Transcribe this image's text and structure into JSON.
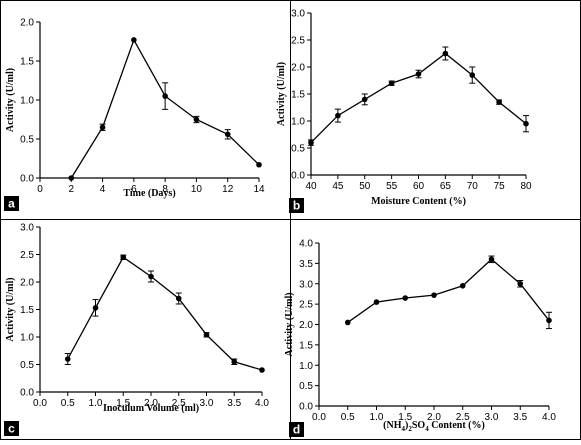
{
  "chart_data": [
    {
      "type": "line",
      "panel_label": "a",
      "xlabel": "Time (Days)",
      "ylabel": "Activity (U/ml)",
      "xlim": [
        0,
        14
      ],
      "ylim": [
        0,
        2.0
      ],
      "xticks": [
        "0",
        "2",
        "4",
        "6",
        "8",
        "10",
        "12",
        "14"
      ],
      "yticks": [
        "0.0",
        "0.5",
        "1.0",
        "1.5",
        "2.0"
      ],
      "grid": false,
      "series": [
        {
          "x": [
            2,
            4,
            6,
            8,
            10,
            12,
            14
          ],
          "y": [
            0.0,
            0.65,
            1.77,
            1.05,
            0.75,
            0.56,
            0.17
          ],
          "err": [
            0.0,
            0.04,
            0.0,
            0.17,
            0.04,
            0.06,
            0.0
          ]
        }
      ]
    },
    {
      "type": "line",
      "panel_label": "b",
      "xlabel": "Moisture Content (%)",
      "ylabel": "Activity (U/ml)",
      "xlim": [
        40,
        80
      ],
      "ylim": [
        0,
        3.0
      ],
      "xticks": [
        "40",
        "45",
        "50",
        "55",
        "60",
        "65",
        "70",
        "75",
        "80"
      ],
      "yticks": [
        "0.0",
        "0.5",
        "1.0",
        "1.5",
        "2.0",
        "2.5",
        "3.0"
      ],
      "grid": false,
      "series": [
        {
          "x": [
            40,
            45,
            50,
            55,
            60,
            65,
            70,
            75,
            80
          ],
          "y": [
            0.6,
            1.1,
            1.4,
            1.7,
            1.87,
            2.25,
            1.85,
            1.35,
            0.95
          ],
          "err": [
            0.05,
            0.12,
            0.1,
            0.04,
            0.07,
            0.12,
            0.15,
            0.04,
            0.15
          ]
        }
      ]
    },
    {
      "type": "line",
      "panel_label": "c",
      "xlabel": "Inoculum Volume (ml)",
      "ylabel": "Activity (U/ml)",
      "xlim": [
        0,
        4.0
      ],
      "ylim": [
        0,
        3.0
      ],
      "xticks": [
        "0.0",
        "0.5",
        "1.0",
        "1.5",
        "2.0",
        "2.5",
        "3.0",
        "3.5",
        "4.0"
      ],
      "yticks": [
        "0.0",
        "0.5",
        "1.0",
        "1.5",
        "2.0",
        "2.5",
        "3.0"
      ],
      "grid": false,
      "series": [
        {
          "x": [
            0.5,
            1.0,
            1.5,
            2.0,
            2.5,
            3.0,
            3.5,
            4.0
          ],
          "y": [
            0.6,
            1.53,
            2.45,
            2.1,
            1.7,
            1.04,
            0.55,
            0.4
          ],
          "err": [
            0.1,
            0.15,
            0.04,
            0.1,
            0.1,
            0.04,
            0.05,
            0.0
          ]
        }
      ]
    },
    {
      "type": "line",
      "panel_label": "d",
      "xlabel": "(NH4)2SO4 Content (%)",
      "ylabel": "Activity (U/ml)",
      "xlim": [
        0,
        4.0
      ],
      "ylim": [
        0,
        4.0
      ],
      "xticks": [
        "0.0",
        "0.5",
        "1.0",
        "1.5",
        "2.0",
        "2.5",
        "3.0",
        "3.5",
        "4.0"
      ],
      "yticks": [
        "0.0",
        "0.5",
        "1.0",
        "1.5",
        "2.0",
        "2.5",
        "3.0",
        "3.5",
        "4.0"
      ],
      "grid": false,
      "series": [
        {
          "x": [
            0.5,
            1.0,
            1.5,
            2.0,
            2.5,
            3.0,
            3.5,
            4.0
          ],
          "y": [
            2.05,
            2.55,
            2.65,
            2.72,
            2.95,
            3.6,
            3.0,
            2.1
          ],
          "err": [
            0.0,
            0.0,
            0.0,
            0.0,
            0.0,
            0.08,
            0.08,
            0.2
          ]
        }
      ]
    }
  ]
}
